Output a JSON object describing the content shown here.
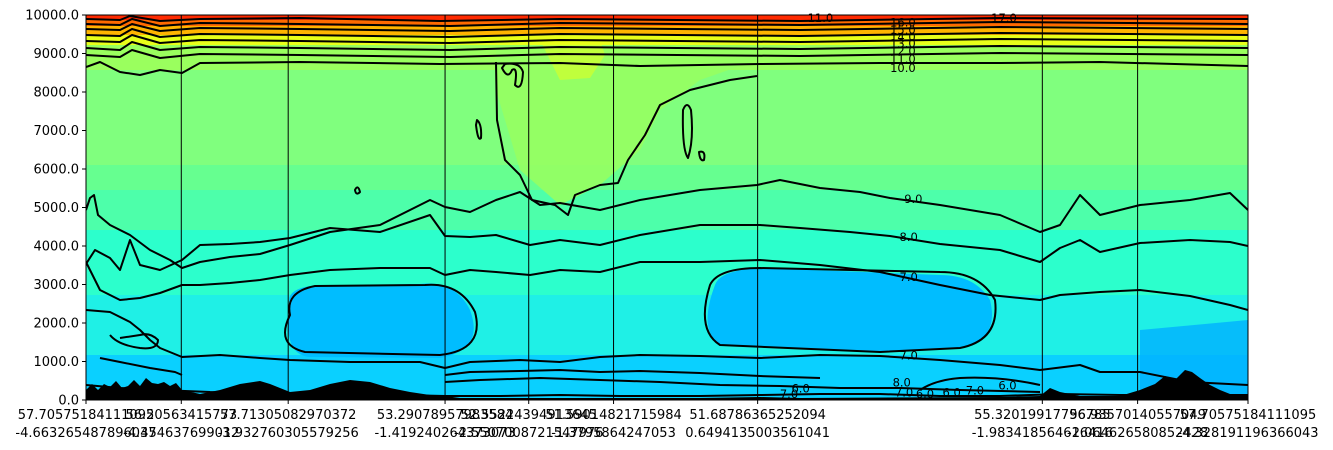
{
  "chart_data": {
    "type": "heatmap",
    "title": "",
    "xlabel": "",
    "ylabel": "",
    "colormap": "jet",
    "ylim": [
      0,
      10000
    ],
    "y_ticks": [
      {
        "value": 0,
        "label": "0.0"
      },
      {
        "value": 1000,
        "label": "1000.0"
      },
      {
        "value": 2000,
        "label": "2000.0"
      },
      {
        "value": 3000,
        "label": "3000.0"
      },
      {
        "value": 4000,
        "label": "4000.0"
      },
      {
        "value": 5000,
        "label": "5000.0"
      },
      {
        "value": 6000,
        "label": "6000.0"
      },
      {
        "value": 7000,
        "label": "7000.0"
      },
      {
        "value": 8000,
        "label": "8000.0"
      },
      {
        "value": 9000,
        "label": "9000.0"
      },
      {
        "value": 10000,
        "label": "10000.0"
      }
    ],
    "xlim": [
      0,
      100
    ],
    "x_ticks": [
      {
        "value": 0.0,
        "line1": "57.70575184111095",
        "line2": "-4.663265487896037"
      },
      {
        "value": 8.2,
        "line1": "56.20563415773",
        "line2": "-4.454637699012"
      },
      {
        "value": 17.4,
        "line1": "57.71305082970372",
        "line2": "-3.932760305579256"
      },
      {
        "value": 30.9,
        "line1": "53.29078957983584",
        "line2": "-1.419240264373073"
      },
      {
        "value": 38.1,
        "line1": "52.55224394913645",
        "line2": "-2.5507008721547976"
      },
      {
        "value": 45.4,
        "line1": "51.59014821715984",
        "line2": "-1.3795864247053"
      },
      {
        "value": 57.8,
        "line1": "51.68786365252094",
        "line2": "0.6494135003561041"
      },
      {
        "value": 82.3,
        "line1": "55.32019917796785",
        "line2": "-1.983418564616416"
      },
      {
        "value": 90.5,
        "line1": "56.93570140557049",
        "line2": "-2.064626580852428"
      },
      {
        "value": 100.0,
        "line1": "57.70575184111095",
        "line2": "-4.328191196366043"
      }
    ],
    "contour_levels": [
      6.0,
      7.0,
      8.0,
      9.0,
      10.0,
      11.0,
      12.0,
      13.0,
      14.0,
      15.0,
      16.0,
      17.0
    ],
    "contour_labels": [
      {
        "text": "16.0",
        "x": 70.3,
        "y": 9800
      },
      {
        "text": "15.0",
        "x": 70.3,
        "y": 9610
      },
      {
        "text": "14.0",
        "x": 70.3,
        "y": 9430
      },
      {
        "text": "13.0",
        "x": 70.3,
        "y": 9260
      },
      {
        "text": "12.0",
        "x": 70.3,
        "y": 9060
      },
      {
        "text": "11.0",
        "x": 70.3,
        "y": 8860
      },
      {
        "text": "10.0",
        "x": 70.3,
        "y": 8620
      },
      {
        "text": "11.0",
        "x": 63.2,
        "y": 9920
      },
      {
        "text": "17.0",
        "x": 79.0,
        "y": 9920
      },
      {
        "text": "9.0",
        "x": 71.2,
        "y": 5220
      },
      {
        "text": "8.0",
        "x": 70.8,
        "y": 4240
      },
      {
        "text": "7.0",
        "x": 70.8,
        "y": 3200
      },
      {
        "text": "7.0",
        "x": 70.8,
        "y": 1160
      },
      {
        "text": "8.0",
        "x": 70.2,
        "y": 460
      },
      {
        "text": "7.0",
        "x": 70.4,
        "y": 200
      },
      {
        "text": "7.0",
        "x": 60.5,
        "y": 150
      },
      {
        "text": "6.0",
        "x": 74.5,
        "y": 200
      },
      {
        "text": "7.0",
        "x": 76.5,
        "y": 250
      },
      {
        "text": "6.0",
        "x": 79.3,
        "y": 380
      },
      {
        "text": "6.0",
        "x": 61.5,
        "y": 300
      },
      {
        "text": "6.0",
        "x": 72.2,
        "y": 150
      }
    ]
  }
}
